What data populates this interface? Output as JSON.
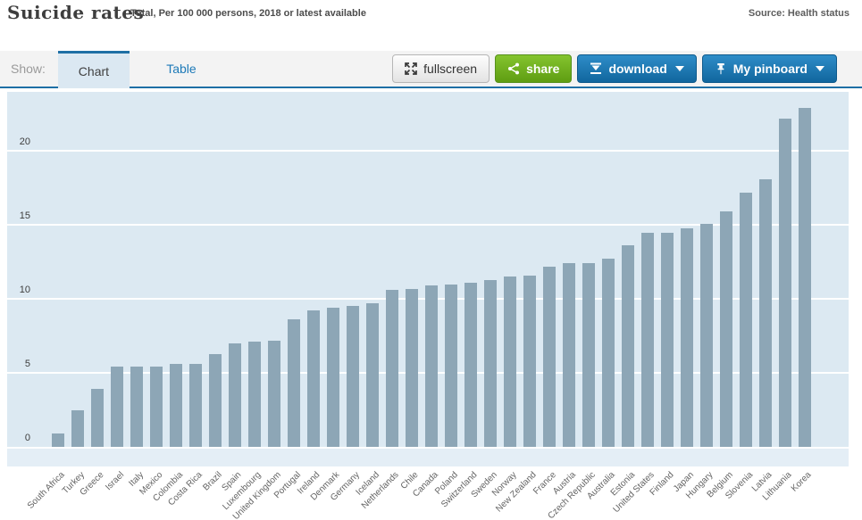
{
  "header": {
    "title": "Suicide rates",
    "subtitle": "Total, Per 100 000 persons, 2018 or latest available",
    "source": "Source: Health status"
  },
  "toolbar": {
    "show_label": "Show:",
    "tabs": [
      {
        "label": "Chart",
        "active": true
      },
      {
        "label": "Table",
        "active": false
      }
    ],
    "buttons": {
      "fullscreen": "fullscreen",
      "share": "share",
      "download": "download",
      "pinboard": "My pinboard"
    },
    "icons": [
      "fullscreen-expand-icon",
      "share-icon",
      "download-icon",
      "pushpin-icon",
      "caret-down-icon"
    ]
  },
  "colors": {
    "accent_blue": "#1d6fa5",
    "link_blue": "#1d7ab8",
    "button_blue": "#11669e",
    "button_green": "#5f9d12",
    "chart_bg": "#dce9f2",
    "bar": "#8da6b6",
    "gridline": "#ffffff"
  },
  "chart_data": {
    "type": "bar",
    "title": "Suicide rates",
    "subtitle": "Total, Per 100 000 persons, 2018 or latest available",
    "xlabel": "",
    "ylabel": "",
    "ylim": [
      0,
      24
    ],
    "yticks": [
      0,
      5,
      10,
      15,
      20
    ],
    "grid": true,
    "legend": "none",
    "categories": [
      "South Africa",
      "Turkey",
      "Greece",
      "Israel",
      "Italy",
      "Mexico",
      "Colombia",
      "Costa Rica",
      "Brazil",
      "Spain",
      "Luxembourg",
      "United Kingdom",
      "Portugal",
      "Ireland",
      "Denmark",
      "Germany",
      "Iceland",
      "Netherlands",
      "Chile",
      "Canada",
      "Poland",
      "Switzerland",
      "Sweden",
      "Norway",
      "New Zealand",
      "France",
      "Austria",
      "Czech Republic",
      "Australia",
      "Estonia",
      "United States",
      "Finland",
      "Japan",
      "Hungary",
      "Belgium",
      "Slovenia",
      "Latvia",
      "Lithuania",
      "Korea"
    ],
    "values": [
      0.9,
      2.5,
      3.9,
      5.4,
      5.4,
      5.4,
      5.6,
      5.6,
      6.3,
      7.0,
      7.1,
      7.2,
      8.6,
      9.2,
      9.4,
      9.5,
      9.7,
      10.6,
      10.7,
      10.9,
      11.0,
      11.1,
      11.3,
      11.5,
      11.6,
      12.2,
      12.4,
      12.4,
      12.7,
      13.6,
      14.5,
      14.5,
      14.8,
      15.1,
      15.9,
      17.2,
      18.1,
      22.2,
      22.9
    ]
  }
}
